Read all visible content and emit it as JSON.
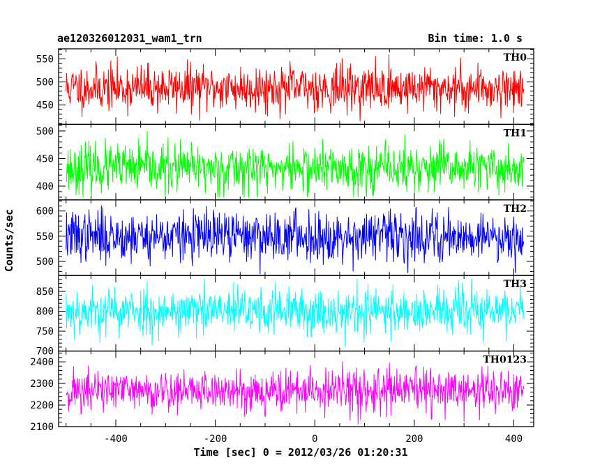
{
  "chart_data": {
    "type": "line",
    "title": "ae120326012031_wam1_trn",
    "subtitle": "Bin time: 1.0 s",
    "xlabel": "Time [sec] 0 = 2012/03/26 01:20:31",
    "ylabel": "Counts/sec",
    "xlim": [
      -515,
      440
    ],
    "x_ticks": [
      -400,
      -200,
      0,
      200,
      400
    ],
    "x_data_range": [
      -500,
      420
    ],
    "x_step": 1,
    "panels": [
      {
        "name": "TH0",
        "color": "#ff0000",
        "ylim": [
          408,
          572
        ],
        "y_ticks": [
          450,
          500,
          550
        ],
        "mean": 487,
        "std": 25,
        "min": 415,
        "max": 570,
        "seed": 11
      },
      {
        "name": "TH1",
        "color": "#00ff00",
        "ylim": [
          375,
          512
        ],
        "y_ticks": [
          400,
          450,
          500
        ],
        "mean": 432,
        "std": 22,
        "min": 380,
        "max": 510,
        "seed": 23
      },
      {
        "name": "TH2",
        "color": "#0000ff",
        "ylim": [
          472,
          622
        ],
        "y_ticks": [
          500,
          550,
          600
        ],
        "mean": 550,
        "std": 25,
        "min": 475,
        "max": 620,
        "seed": 37
      },
      {
        "name": "TH3",
        "color": "#00ffff",
        "ylim": [
          700,
          890
        ],
        "y_ticks": [
          700,
          750,
          800,
          850
        ],
        "mean": 800,
        "std": 30,
        "min": 705,
        "max": 888,
        "seed": 53
      },
      {
        "name": "TH0123",
        "color": "#ff00ff",
        "ylim": [
          2100,
          2450
        ],
        "y_ticks": [
          2100,
          2200,
          2300,
          2400
        ],
        "mean": 2265,
        "std": 50,
        "min": 2110,
        "max": 2445,
        "seed": 71
      }
    ]
  }
}
